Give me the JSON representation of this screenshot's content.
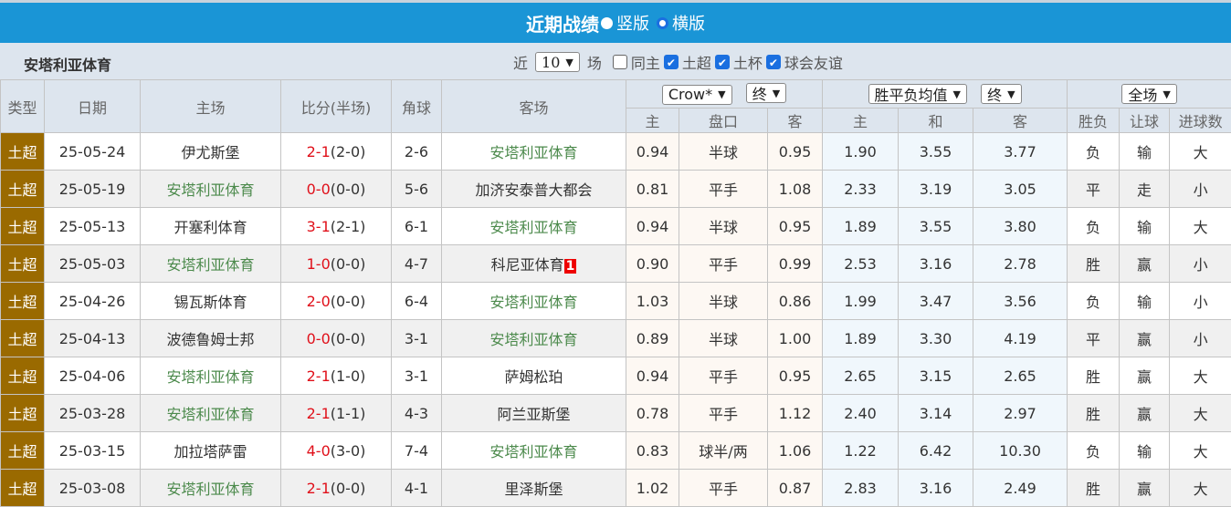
{
  "header": {
    "title": "近期战绩",
    "opt_vertical": "竖版",
    "opt_horizontal": "横版"
  },
  "filter": {
    "team": "安塔利亚体育",
    "recent_prefix": "近",
    "count": "10",
    "recent_suffix": "场",
    "checks": [
      {
        "label": "同主",
        "checked": false
      },
      {
        "label": "土超",
        "checked": true
      },
      {
        "label": "土杯",
        "checked": true
      },
      {
        "label": "球会友谊",
        "checked": true
      }
    ]
  },
  "columns": {
    "type": "类型",
    "date": "日期",
    "home": "主场",
    "score": "比分(半场)",
    "corner": "角球",
    "away": "客场",
    "hc_company": "Crow*",
    "hc_stage": "终",
    "eu_type": "胜平负均值",
    "eu_stage": "终",
    "scope": "全场",
    "hc_home": "主",
    "hc_line": "盘口",
    "hc_away": "客",
    "eu_home": "主",
    "eu_draw": "和",
    "eu_away": "客",
    "res_wl": "胜负",
    "res_hc": "让球",
    "res_goals": "进球数"
  },
  "rows": [
    {
      "type": "土超",
      "date": "25-05-24",
      "home": "伊尤斯堡",
      "ft": "2-1",
      "ht": "(2-0)",
      "corner": "2-6",
      "away": "安塔利亚体育",
      "badge": "",
      "hh": "0.94",
      "hl": "半球",
      "ha": "0.95",
      "eh": "1.90",
      "ed": "3.55",
      "ea": "3.77",
      "wl": "负",
      "hr": "输",
      "g": "大",
      "home_team": false
    },
    {
      "type": "土超",
      "date": "25-05-19",
      "home": "安塔利亚体育",
      "ft": "0-0",
      "ht": "(0-0)",
      "corner": "5-6",
      "away": "加济安泰普大都会",
      "badge": "",
      "hh": "0.81",
      "hl": "平手",
      "ha": "1.08",
      "eh": "2.33",
      "ed": "3.19",
      "ea": "3.05",
      "wl": "平",
      "hr": "走",
      "g": "小",
      "home_team": true
    },
    {
      "type": "土超",
      "date": "25-05-13",
      "home": "开塞利体育",
      "ft": "3-1",
      "ht": "(2-1)",
      "corner": "6-1",
      "away": "安塔利亚体育",
      "badge": "",
      "hh": "0.94",
      "hl": "半球",
      "ha": "0.95",
      "eh": "1.89",
      "ed": "3.55",
      "ea": "3.80",
      "wl": "负",
      "hr": "输",
      "g": "大",
      "home_team": false
    },
    {
      "type": "土超",
      "date": "25-05-03",
      "home": "安塔利亚体育",
      "ft": "1-0",
      "ht": "(0-0)",
      "corner": "4-7",
      "away": "科尼亚体育",
      "badge": "1",
      "hh": "0.90",
      "hl": "平手",
      "ha": "0.99",
      "eh": "2.53",
      "ed": "3.16",
      "ea": "2.78",
      "wl": "胜",
      "hr": "赢",
      "g": "小",
      "home_team": true
    },
    {
      "type": "土超",
      "date": "25-04-26",
      "home": "锡瓦斯体育",
      "ft": "2-0",
      "ht": "(0-0)",
      "corner": "6-4",
      "away": "安塔利亚体育",
      "badge": "",
      "hh": "1.03",
      "hl": "半球",
      "ha": "0.86",
      "eh": "1.99",
      "ed": "3.47",
      "ea": "3.56",
      "wl": "负",
      "hr": "输",
      "g": "小",
      "home_team": false
    },
    {
      "type": "土超",
      "date": "25-04-13",
      "home": "波德鲁姆士邦",
      "ft": "0-0",
      "ht": "(0-0)",
      "corner": "3-1",
      "away": "安塔利亚体育",
      "badge": "",
      "hh": "0.89",
      "hl": "半球",
      "ha": "1.00",
      "eh": "1.89",
      "ed": "3.30",
      "ea": "4.19",
      "wl": "平",
      "hr": "赢",
      "g": "小",
      "home_team": false
    },
    {
      "type": "土超",
      "date": "25-04-06",
      "home": "安塔利亚体育",
      "ft": "2-1",
      "ht": "(1-0)",
      "corner": "3-1",
      "away": "萨姆松珀",
      "badge": "",
      "hh": "0.94",
      "hl": "平手",
      "ha": "0.95",
      "eh": "2.65",
      "ed": "3.15",
      "ea": "2.65",
      "wl": "胜",
      "hr": "赢",
      "g": "大",
      "home_team": true
    },
    {
      "type": "土超",
      "date": "25-03-28",
      "home": "安塔利亚体育",
      "ft": "2-1",
      "ht": "(1-1)",
      "corner": "4-3",
      "away": "阿兰亚斯堡",
      "badge": "",
      "hh": "0.78",
      "hl": "平手",
      "ha": "1.12",
      "eh": "2.40",
      "ed": "3.14",
      "ea": "2.97",
      "wl": "胜",
      "hr": "赢",
      "g": "大",
      "home_team": true
    },
    {
      "type": "土超",
      "date": "25-03-15",
      "home": "加拉塔萨雷",
      "ft": "4-0",
      "ht": "(3-0)",
      "corner": "7-4",
      "away": "安塔利亚体育",
      "badge": "",
      "hh": "0.83",
      "hl": "球半/两",
      "ha": "1.06",
      "eh": "1.22",
      "ed": "6.42",
      "ea": "10.30",
      "wl": "负",
      "hr": "输",
      "g": "大",
      "home_team": false
    },
    {
      "type": "土超",
      "date": "25-03-08",
      "home": "安塔利亚体育",
      "ft": "2-1",
      "ht": "(0-0)",
      "corner": "4-1",
      "away": "里泽斯堡",
      "badge": "",
      "hh": "1.02",
      "hl": "平手",
      "ha": "0.87",
      "eh": "2.83",
      "ed": "3.16",
      "ea": "2.49",
      "wl": "胜",
      "hr": "赢",
      "g": "大",
      "home_team": true
    }
  ],
  "colors": {
    "title_bar": "#1a95d6",
    "type_badge": "#9a6a00",
    "team_highlight": "#4c8a4c",
    "score": "#e0101a"
  }
}
